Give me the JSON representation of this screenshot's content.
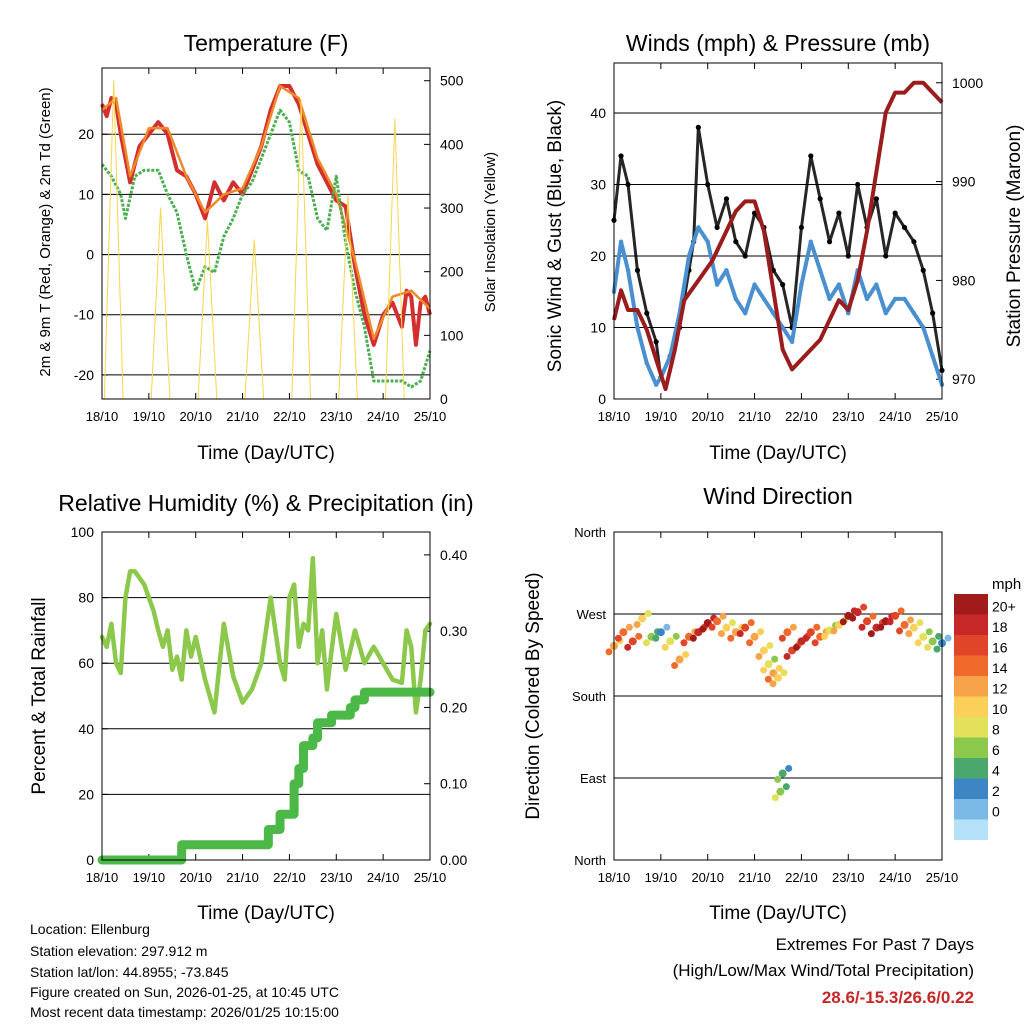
{
  "chart_data": [
    {
      "type": "line",
      "title": "Temperature (F)",
      "xlabel": "Time (Day/UTC)",
      "ylabel": "2m & 9m T (Red, Orange) & 2m Td (Green)",
      "ylabel_right": "Solar Insolation (Yellow)",
      "x_ticks": [
        "18/10",
        "19/10",
        "20/10",
        "21/10",
        "22/10",
        "23/10",
        "24/10",
        "25/10"
      ],
      "ylim": [
        -24,
        31
      ],
      "y_ticks": [
        -20,
        -10,
        0,
        10,
        20
      ],
      "ylim_right": [
        0,
        520
      ],
      "y_ticks_right": [
        0,
        100,
        200,
        300,
        400,
        500
      ],
      "series": [
        {
          "name": "2m T",
          "color": "#d32f2f",
          "x": [
            0,
            0.1,
            0.2,
            0.3,
            0.4,
            0.5,
            0.6,
            0.8,
            1.0,
            1.2,
            1.4,
            1.6,
            1.8,
            2.0,
            2.2,
            2.4,
            2.6,
            2.8,
            3.0,
            3.2,
            3.4,
            3.6,
            3.8,
            4.0,
            4.2,
            4.4,
            4.6,
            4.8,
            5.0,
            5.2,
            5.4,
            5.6,
            5.8,
            6.0,
            6.2,
            6.4,
            6.5,
            6.6,
            6.7,
            6.8,
            6.9,
            7.0
          ],
          "values": [
            25,
            23,
            26,
            25,
            20,
            16,
            12,
            18,
            20,
            22,
            20,
            14,
            13,
            10,
            6,
            12,
            9,
            12,
            10,
            14,
            18,
            24,
            28,
            28,
            25,
            20,
            15,
            12,
            9,
            8,
            -2,
            -10,
            -15,
            -10,
            -8,
            -12,
            -6,
            -7,
            -15,
            -8,
            -7,
            -10
          ]
        },
        {
          "name": "9m T",
          "color": "#ef8a2a",
          "x": [
            0,
            0.3,
            0.6,
            1.0,
            1.4,
            1.8,
            2.2,
            2.6,
            3.0,
            3.4,
            3.8,
            4.2,
            4.6,
            5.0,
            5.4,
            5.8,
            6.2,
            6.6,
            7.0
          ],
          "values": [
            24,
            26,
            13,
            21,
            21,
            13,
            7,
            10,
            11,
            18,
            28,
            26,
            16,
            10,
            -1,
            -14,
            -7,
            -6,
            -9
          ]
        },
        {
          "name": "2m Td",
          "color": "#4caf50",
          "x": [
            0,
            0.2,
            0.4,
            0.5,
            0.7,
            0.9,
            1.0,
            1.2,
            1.4,
            1.6,
            1.8,
            2.0,
            2.2,
            2.4,
            2.6,
            2.8,
            3.0,
            3.2,
            3.4,
            3.6,
            3.8,
            4.0,
            4.2,
            4.4,
            4.6,
            4.8,
            5.0,
            5.2,
            5.4,
            5.6,
            5.8,
            6.0,
            6.2,
            6.4,
            6.6,
            6.8,
            7.0
          ],
          "values": [
            15,
            13,
            10,
            6,
            13,
            14,
            14,
            14,
            10,
            7,
            0,
            -6,
            -2,
            -3,
            3,
            6,
            10,
            12,
            16,
            20,
            24,
            22,
            14,
            13,
            6,
            4,
            13,
            2,
            -6,
            -12,
            -21,
            -21,
            -21,
            -21,
            -22,
            -21,
            -16
          ]
        },
        {
          "name": "Solar Insolation",
          "color": "#f5d64e",
          "axis": "right",
          "x": [
            0.05,
            0.25,
            0.45,
            1.05,
            1.25,
            1.45,
            2.05,
            2.25,
            2.45,
            3.05,
            3.25,
            3.45,
            4.05,
            4.25,
            4.45,
            5.05,
            5.25,
            5.45,
            6.05,
            6.25,
            6.45
          ],
          "values": [
            0,
            500,
            0,
            0,
            300,
            0,
            0,
            280,
            0,
            0,
            250,
            0,
            0,
            470,
            0,
            0,
            320,
            0,
            0,
            440,
            0
          ]
        }
      ]
    },
    {
      "type": "scatter",
      "title": "Winds (mph) & Pressure (mb)",
      "xlabel": "Time (Day/UTC)",
      "ylabel": "Sonic Wind & Gust (Blue, Black)",
      "ylabel_right": "Station Pressure (Maroon)",
      "x_ticks": [
        "18/10",
        "19/10",
        "20/10",
        "21/10",
        "22/10",
        "23/10",
        "24/10",
        "25/10"
      ],
      "ylim": [
        0,
        47
      ],
      "y_ticks": [
        0,
        10,
        20,
        30,
        40
      ],
      "ylim_right": [
        968,
        1002
      ],
      "y_ticks_right": [
        970,
        980,
        990,
        1000
      ],
      "series": [
        {
          "name": "Gust",
          "color": "#000000",
          "x": [
            0,
            0.15,
            0.3,
            0.5,
            0.7,
            0.9,
            1.0,
            1.2,
            1.4,
            1.6,
            1.7,
            1.8,
            2.0,
            2.2,
            2.4,
            2.6,
            2.8,
            3.0,
            3.2,
            3.4,
            3.6,
            3.8,
            4.0,
            4.2,
            4.4,
            4.6,
            4.8,
            5.0,
            5.2,
            5.4,
            5.6,
            5.8,
            6.0,
            6.2,
            6.4,
            6.6,
            6.8,
            7.0
          ],
          "values": [
            25,
            34,
            30,
            18,
            12,
            8,
            3,
            6,
            10,
            18,
            22,
            38,
            30,
            24,
            28,
            22,
            20,
            26,
            24,
            18,
            16,
            10,
            24,
            34,
            28,
            22,
            26,
            20,
            30,
            24,
            28,
            20,
            26,
            24,
            22,
            18,
            12,
            4
          ]
        },
        {
          "name": "Wind",
          "color": "#4a90d0",
          "x": [
            0,
            0.15,
            0.3,
            0.5,
            0.7,
            0.9,
            1.0,
            1.2,
            1.4,
            1.6,
            1.8,
            2.0,
            2.2,
            2.4,
            2.6,
            2.8,
            3.0,
            3.2,
            3.4,
            3.6,
            3.8,
            4.0,
            4.2,
            4.4,
            4.6,
            4.8,
            5.0,
            5.2,
            5.4,
            5.6,
            5.8,
            6.0,
            6.2,
            6.4,
            6.6,
            6.8,
            7.0
          ],
          "values": [
            15,
            22,
            18,
            10,
            5,
            2,
            3,
            6,
            12,
            20,
            24,
            22,
            16,
            18,
            14,
            12,
            16,
            14,
            12,
            10,
            8,
            16,
            22,
            18,
            14,
            16,
            12,
            18,
            14,
            16,
            12,
            14,
            14,
            12,
            10,
            6,
            2
          ]
        },
        {
          "name": "Station Pressure",
          "color": "#9b1c1c",
          "axis": "right",
          "x": [
            0,
            0.15,
            0.3,
            0.5,
            0.7,
            0.9,
            1.1,
            1.3,
            1.5,
            1.8,
            2.1,
            2.4,
            2.6,
            2.8,
            3.0,
            3.2,
            3.4,
            3.6,
            3.8,
            4.0,
            4.2,
            4.4,
            4.6,
            4.8,
            5.0,
            5.2,
            5.4,
            5.6,
            5.8,
            6.0,
            6.2,
            6.4,
            6.6,
            6.8,
            7.0
          ],
          "values": [
            976,
            979,
            977,
            977,
            975,
            972,
            969,
            973,
            978,
            980,
            982,
            985,
            987,
            988,
            988,
            985,
            979,
            973,
            971,
            972,
            973,
            974,
            976,
            978,
            977,
            980,
            985,
            991,
            997,
            999,
            999,
            1000,
            1000,
            999,
            998
          ]
        }
      ]
    },
    {
      "type": "line",
      "title": "Relative Humidity (%) & Precipitation (in)",
      "xlabel": "Time (Day/UTC)",
      "ylabel": "Percent & Total Rainfall",
      "x_ticks": [
        "18/10",
        "19/10",
        "20/10",
        "21/10",
        "22/10",
        "23/10",
        "24/10",
        "25/10"
      ],
      "ylim": [
        0,
        100
      ],
      "y_ticks": [
        0,
        20,
        40,
        60,
        80,
        100
      ],
      "ylim_right": [
        0,
        0.43
      ],
      "y_ticks_right": [
        "0.00",
        "0.10",
        "0.20",
        "0.30",
        "0.40"
      ],
      "series": [
        {
          "name": "Relative Humidity",
          "color": "#8cc84b",
          "x": [
            0,
            0.1,
            0.2,
            0.3,
            0.4,
            0.5,
            0.6,
            0.7,
            0.8,
            0.9,
            1.0,
            1.1,
            1.2,
            1.3,
            1.4,
            1.5,
            1.6,
            1.7,
            1.8,
            1.9,
            2.0,
            2.2,
            2.4,
            2.6,
            2.8,
            3.0,
            3.2,
            3.4,
            3.6,
            3.7,
            3.8,
            3.9,
            4.0,
            4.1,
            4.2,
            4.3,
            4.4,
            4.5,
            4.6,
            4.7,
            4.8,
            4.9,
            5.0,
            5.2,
            5.4,
            5.6,
            5.8,
            6.0,
            6.2,
            6.4,
            6.5,
            6.6,
            6.7,
            6.8,
            6.9,
            7.0
          ],
          "values": [
            68,
            65,
            72,
            60,
            57,
            80,
            88,
            88,
            86,
            84,
            80,
            76,
            70,
            65,
            70,
            58,
            62,
            55,
            70,
            62,
            68,
            55,
            45,
            72,
            56,
            48,
            52,
            60,
            80,
            70,
            60,
            55,
            80,
            84,
            65,
            72,
            70,
            92,
            60,
            70,
            52,
            64,
            75,
            58,
            70,
            60,
            65,
            60,
            55,
            54,
            70,
            65,
            45,
            55,
            70,
            72
          ]
        },
        {
          "name": "Total Precipitation",
          "color": "#4cb848",
          "axis": "right",
          "step": true,
          "x": [
            0,
            1.65,
            1.7,
            3.5,
            3.55,
            3.75,
            3.8,
            4.05,
            4.1,
            4.2,
            4.3,
            4.5,
            4.6,
            4.8,
            4.9,
            5.3,
            5.4,
            5.6,
            7.0
          ],
          "values": [
            0.0,
            0.0,
            0.02,
            0.02,
            0.04,
            0.04,
            0.06,
            0.06,
            0.1,
            0.12,
            0.15,
            0.16,
            0.18,
            0.18,
            0.19,
            0.2,
            0.21,
            0.22,
            0.22
          ]
        }
      ]
    },
    {
      "type": "scatter",
      "title": "Wind Direction",
      "xlabel": "Time (Day/UTC)",
      "ylabel": "Direction (Colored By Speed)",
      "x_ticks": [
        "18/10",
        "19/10",
        "20/10",
        "21/10",
        "22/10",
        "23/10",
        "24/10",
        "25/10"
      ],
      "y_ticks": [
        "North",
        "East",
        "South",
        "West",
        "North"
      ],
      "ylim": [
        0,
        360
      ],
      "colorbar": {
        "units": "mph",
        "labels": [
          "20+",
          "18",
          "16",
          "14",
          "12",
          "10",
          "8",
          "6",
          "4",
          "2",
          "0"
        ],
        "colors": [
          "#a21b1b",
          "#c62828",
          "#e0452a",
          "#f06a2c",
          "#f7a34a",
          "#fbd05a",
          "#e3e15a",
          "#8cc84b",
          "#4aa86c",
          "#3d86c4",
          "#7bbae6",
          "#b5e2f8"
        ]
      },
      "series": [
        {
          "name": "Direction",
          "x": [
            0,
            0.2,
            0.4,
            0.6,
            0.8,
            1.0,
            1.2,
            1.4,
            1.6,
            1.8,
            2.0,
            2.2,
            2.4,
            2.6,
            2.8,
            3.0,
            3.2,
            3.3,
            3.4,
            3.5,
            3.55,
            3.6,
            3.7,
            3.8,
            4.0,
            4.2,
            4.4,
            4.6,
            4.8,
            5.0,
            5.2,
            5.4,
            5.6,
            5.8,
            6.0,
            6.2,
            6.4,
            6.6,
            6.8,
            7.0
          ],
          "values": [
            235,
            250,
            240,
            265,
            245,
            250,
            240,
            220,
            245,
            250,
            260,
            262,
            255,
            250,
            255,
            245,
            230,
            215,
            205,
            200,
            75,
            95,
            250,
            230,
            240,
            250,
            245,
            252,
            258,
            268,
            272,
            262,
            255,
            262,
            268,
            258,
            255,
            245,
            240,
            238
          ],
          "speeds": [
            12,
            14,
            16,
            10,
            6,
            3,
            8,
            12,
            14,
            18,
            20,
            14,
            10,
            12,
            16,
            12,
            10,
            8,
            12,
            10,
            6,
            5,
            14,
            16,
            18,
            16,
            14,
            8,
            10,
            20,
            18,
            16,
            18,
            20,
            16,
            14,
            10,
            8,
            6,
            3
          ]
        }
      ]
    }
  ],
  "footer": {
    "location": "Location: Ellenburg",
    "elevation": "Station elevation: 297.912 m",
    "latlon": "Station lat/lon: 44.8955; -73.845",
    "created": "Figure created on Sun, 2026-01-25, at 10:45 UTC",
    "recent": "Most recent data timestamp: 2026/01/25 10:15:00"
  },
  "extremes": {
    "title": "Extremes For Past 7 Days",
    "subtitle": "(High/Low/Max Wind/Total Precipitation)",
    "values": "28.6/-15.3/26.6/0.22"
  }
}
